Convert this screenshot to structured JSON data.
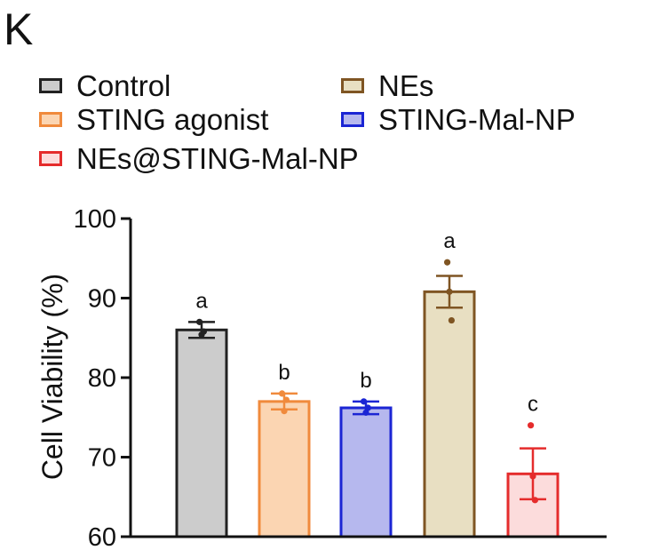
{
  "panel_label": "K",
  "chart_data": {
    "type": "bar",
    "categories": [
      "Control",
      "STING agonist",
      "STING-Mal-NP",
      "NEs",
      "NEs@STING-Mal-NP"
    ],
    "series": [
      {
        "values": [
          86,
          77,
          76.2,
          90.8,
          67.9
        ],
        "sem": [
          1.0,
          1.0,
          0.8,
          2.0,
          3.2
        ],
        "points": [
          [
            87,
            85.4,
            85.8
          ],
          [
            78,
            75.8,
            77.2
          ],
          [
            77,
            75.6,
            76.2
          ],
          [
            94.5,
            90.8,
            87.2
          ],
          [
            74,
            67.6,
            64.6
          ]
        ]
      }
    ],
    "significance_letters": [
      "a",
      "b",
      "b",
      "a",
      "c"
    ],
    "legend": [
      "Control",
      "STING agonist",
      "NEs@STING-Mal-NP",
      "NEs",
      "STING-Mal-NP"
    ],
    "legend_placement": "top",
    "ylabel": "Cell Viability (%)",
    "xlabel": "",
    "ylim": [
      60,
      100
    ],
    "yticks": [
      60,
      70,
      80,
      90,
      100
    ],
    "grid": false,
    "fill_colors": [
      "#cccccc",
      "#fbd5b2",
      "#b6b8ee",
      "#e8dfc2",
      "#fcdcdc"
    ],
    "edge_colors": [
      "#222222",
      "#f08a3c",
      "#1b25d4",
      "#7f5523",
      "#e52c2c"
    ]
  }
}
